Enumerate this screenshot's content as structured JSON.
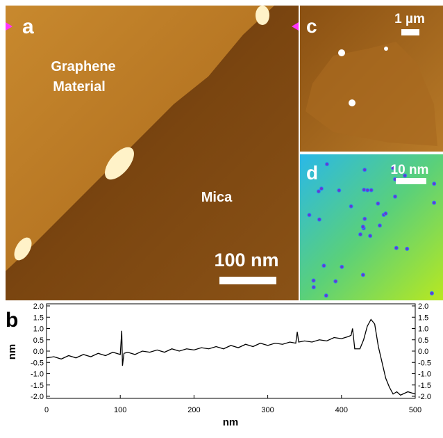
{
  "panels": {
    "a": {
      "label": "a",
      "region_top": [
        "Graphene",
        "Material"
      ],
      "region_bottom": "Mica",
      "scale_bar": "100 nm"
    },
    "c": {
      "label": "c",
      "scale_bar": "1 µm"
    },
    "d": {
      "label": "d",
      "scale_bar": "10 nm"
    }
  },
  "chart_data": {
    "type": "line",
    "label": "b",
    "x_label": "nm",
    "y_label": "nm",
    "color": "#000000",
    "x": [
      0,
      10,
      20,
      30,
      40,
      50,
      60,
      70,
      80,
      90,
      100,
      102,
      103,
      105,
      110,
      120,
      130,
      140,
      150,
      160,
      170,
      180,
      190,
      200,
      210,
      220,
      230,
      240,
      250,
      260,
      270,
      280,
      290,
      300,
      310,
      320,
      330,
      338,
      340,
      342,
      350,
      360,
      370,
      380,
      390,
      400,
      410,
      413,
      415,
      418,
      425,
      430,
      435,
      440,
      445,
      450,
      455,
      460,
      465,
      470,
      475,
      480,
      490,
      500
    ],
    "values": [
      -0.3,
      -0.25,
      -0.35,
      -0.2,
      -0.3,
      -0.15,
      -0.25,
      -0.1,
      -0.2,
      -0.05,
      -0.15,
      0.9,
      -0.65,
      -0.1,
      -0.05,
      -0.15,
      0.0,
      -0.05,
      0.05,
      -0.05,
      0.1,
      0.0,
      0.1,
      0.05,
      0.15,
      0.1,
      0.2,
      0.1,
      0.25,
      0.15,
      0.3,
      0.2,
      0.35,
      0.25,
      0.35,
      0.3,
      0.4,
      0.35,
      0.85,
      0.4,
      0.45,
      0.4,
      0.5,
      0.45,
      0.6,
      0.55,
      0.65,
      0.7,
      1.0,
      0.1,
      0.1,
      0.5,
      1.1,
      1.4,
      1.2,
      0.2,
      -0.5,
      -1.2,
      -1.6,
      -1.9,
      -1.8,
      -1.95,
      -1.8,
      -1.9
    ],
    "xlim": [
      0,
      500
    ],
    "xticks": [
      0,
      100,
      200,
      300,
      400,
      500
    ],
    "ylim": [
      -2,
      2
    ],
    "yticks": [
      {
        "value": 2,
        "label": "2.0"
      },
      1.5,
      {
        "value": 1,
        "label": "1.0"
      },
      0.5,
      {
        "value": 0,
        "label": "0.0"
      },
      -0.5,
      {
        "value": -1,
        "label": "-1.0"
      },
      -1.5,
      {
        "value": -2,
        "label": "-2.0"
      }
    ]
  }
}
